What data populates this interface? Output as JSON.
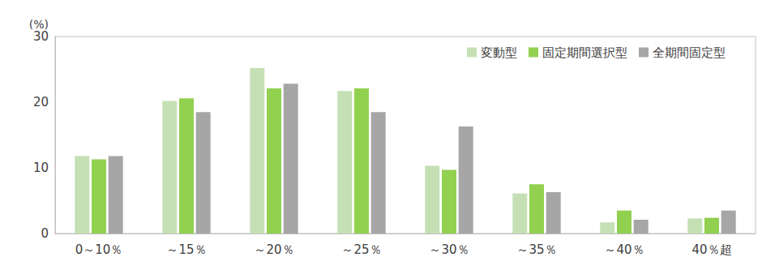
{
  "chart_data": {
    "type": "bar",
    "y_label": "(%)",
    "categories": [
      "0～10％",
      "～15％",
      "～20％",
      "～25％",
      "～30％",
      "～35％",
      "～40％",
      "40％超"
    ],
    "series": [
      {
        "name": "変動型",
        "color": "#c5e0b4",
        "values": [
          11.8,
          20.2,
          25.2,
          21.7,
          10.3,
          6.1,
          1.7,
          2.3
        ]
      },
      {
        "name": "固定期間選択型",
        "color": "#92d050",
        "values": [
          11.3,
          20.6,
          22.1,
          22.1,
          9.7,
          7.5,
          3.5,
          2.4
        ]
      },
      {
        "name": "全期間固定型",
        "color": "#a6a6a6",
        "values": [
          11.8,
          18.5,
          22.8,
          18.5,
          16.3,
          6.3,
          2.1,
          3.5
        ]
      }
    ],
    "ylim": [
      0,
      30
    ],
    "yticks": [
      0,
      10,
      20,
      30
    ],
    "grid": false,
    "legend": "upper right"
  }
}
